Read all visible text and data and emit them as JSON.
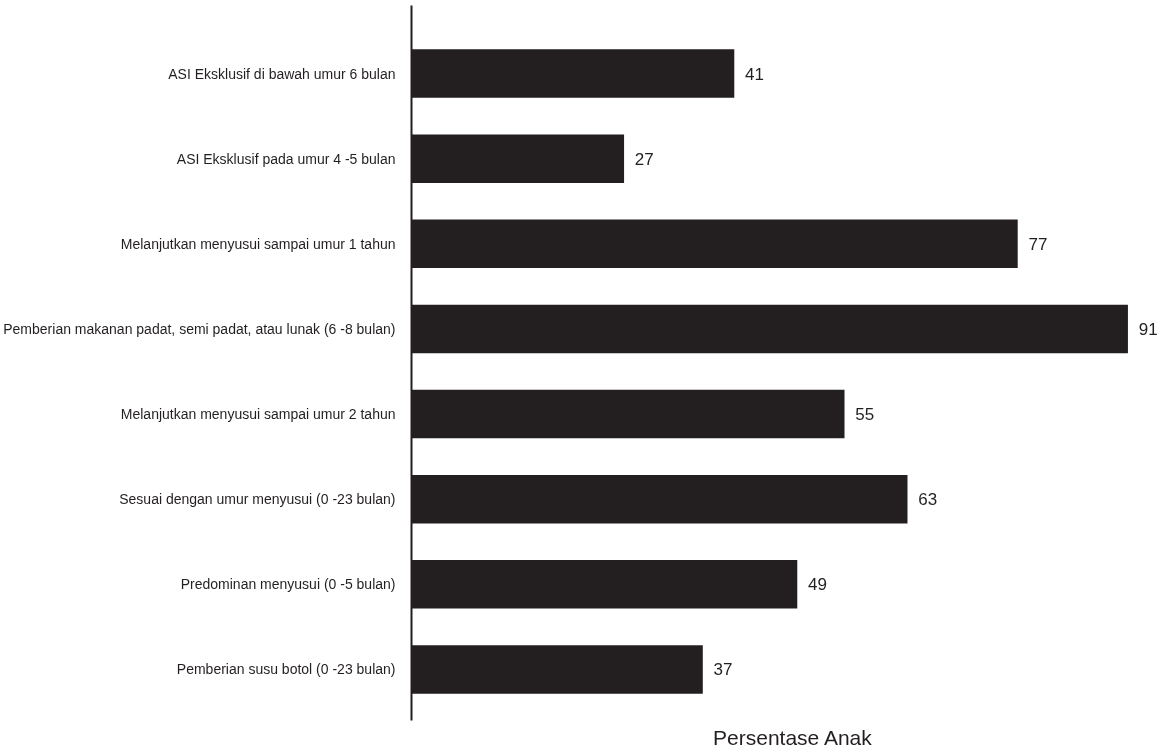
{
  "chart_data": {
    "type": "bar",
    "orientation": "horizontal",
    "xlabel": "Persentase Anak",
    "categories": [
      "ASI Eksklusif di bawah umur 6 bulan",
      "ASI Eksklusif pada umur 4 -5 bulan",
      "Melanjutkan menyusui sampai umur 1 tahun",
      "Pemberian makanan padat, semi padat, atau lunak (6 -8 bulan)",
      "Melanjutkan menyusui sampai umur 2 tahun",
      "Sesuai dengan umur menyusui (0 -23 bulan)",
      "Predominan menyusui (0 -5 bulan)",
      "Pemberian susu botol (0 -23 bulan)"
    ],
    "values": [
      41,
      27,
      77,
      91,
      55,
      63,
      49,
      37
    ],
    "color": "#231f20",
    "data_labels": true,
    "grid": false
  }
}
